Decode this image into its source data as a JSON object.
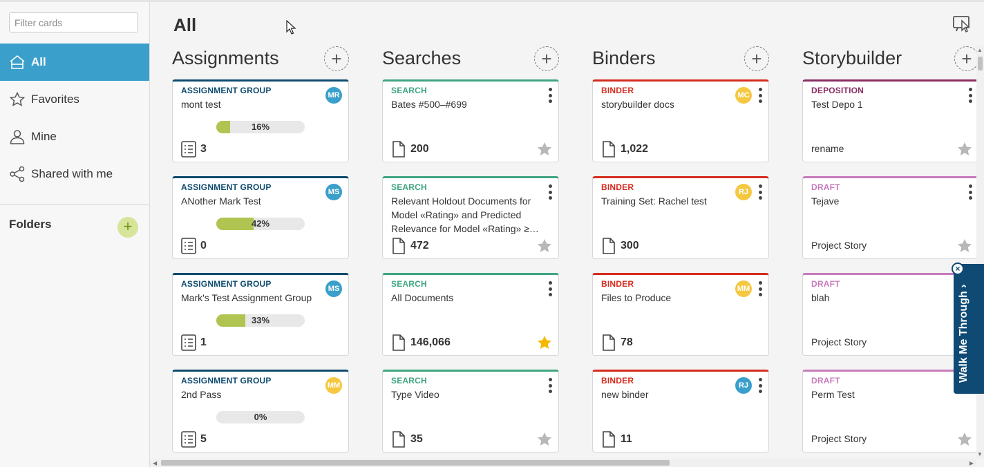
{
  "sidebar": {
    "filter_placeholder": "Filter cards",
    "nav": [
      {
        "label": "All",
        "icon": "home-icon",
        "active": true
      },
      {
        "label": "Favorites",
        "icon": "star-outline-icon"
      },
      {
        "label": "Mine",
        "icon": "user-icon"
      },
      {
        "label": "Shared with me",
        "icon": "share-icon"
      }
    ],
    "folders_label": "Folders",
    "folders_add": "+"
  },
  "main": {
    "title": "All",
    "columns": [
      {
        "title": "Assignments",
        "add_symbol": "+",
        "cards": [
          {
            "type": "ASSIGNMENT GROUP",
            "name": "mont test",
            "avatar": "MR",
            "progress_label": "16%",
            "progress": 0.16,
            "count": "3"
          },
          {
            "type": "ASSIGNMENT GROUP",
            "name": "ANother Mark Test",
            "avatar": "MS",
            "progress_label": "42%",
            "progress": 0.42,
            "count": "0"
          },
          {
            "type": "ASSIGNMENT GROUP",
            "name": "Mark's Test Assignment Group",
            "avatar": "MS",
            "progress_label": "33%",
            "progress": 0.33,
            "count": "1"
          },
          {
            "type": "ASSIGNMENT GROUP",
            "name": "2nd Pass",
            "avatar": "MM",
            "progress_label": "0%",
            "progress": 0,
            "count": "5"
          }
        ]
      },
      {
        "title": "Searches",
        "add_symbol": "+",
        "cards": [
          {
            "type": "SEARCH",
            "name": "Bates #500–#699",
            "count": "200",
            "favorite": false
          },
          {
            "type": "SEARCH",
            "name": "Relevant Holdout Documents for Model «Rating» and Predicted Relevance for Model «Rating» ≥…",
            "count": "472",
            "favorite": false
          },
          {
            "type": "SEARCH",
            "name": "All Documents",
            "count": "146,066",
            "favorite": true
          },
          {
            "type": "SEARCH",
            "name": "Type Video",
            "count": "35",
            "favorite": false
          }
        ]
      },
      {
        "title": "Binders",
        "add_symbol": "+",
        "cards": [
          {
            "type": "BINDER",
            "name": "storybuilder docs",
            "avatar": "MC",
            "count": "1,022"
          },
          {
            "type": "BINDER",
            "name": "Training Set: Rachel test",
            "avatar": "RJ",
            "count": "300"
          },
          {
            "type": "BINDER",
            "name": "Files to Produce",
            "avatar": "MM",
            "count": "78"
          },
          {
            "type": "BINDER",
            "name": "new binder",
            "avatar": "RJ",
            "count": "11"
          }
        ]
      },
      {
        "title": "Storybuilder",
        "add_symbol": "+",
        "cards": [
          {
            "type": "DEPOSITION",
            "name": "Test Depo 1",
            "subtext": "rename",
            "favorite": false
          },
          {
            "type": "DRAFT",
            "name": "Tejave",
            "subtext": "Project Story",
            "favorite": false
          },
          {
            "type": "DRAFT",
            "name": "blah",
            "subtext": "Project Story",
            "favorite": false
          },
          {
            "type": "DRAFT",
            "name": "Perm Test",
            "subtext": "Project Story",
            "favorite": false
          }
        ]
      }
    ]
  },
  "walkme": {
    "label": "Walk Me Through",
    "close": "×"
  },
  "colors": {
    "active_nav": "#3a9fcb",
    "assignment": "#0d4a6e",
    "search": "#3fa57f",
    "binder": "#d52b1e",
    "deposition": "#8a2c61",
    "draft": "#c77bbc",
    "avatar_blue": "#3a9fcb",
    "avatar_yellow": "#f5c842",
    "progress_fill": "#b0c452",
    "star_on": "#f5b800",
    "star_off": "#b8b8b8"
  }
}
